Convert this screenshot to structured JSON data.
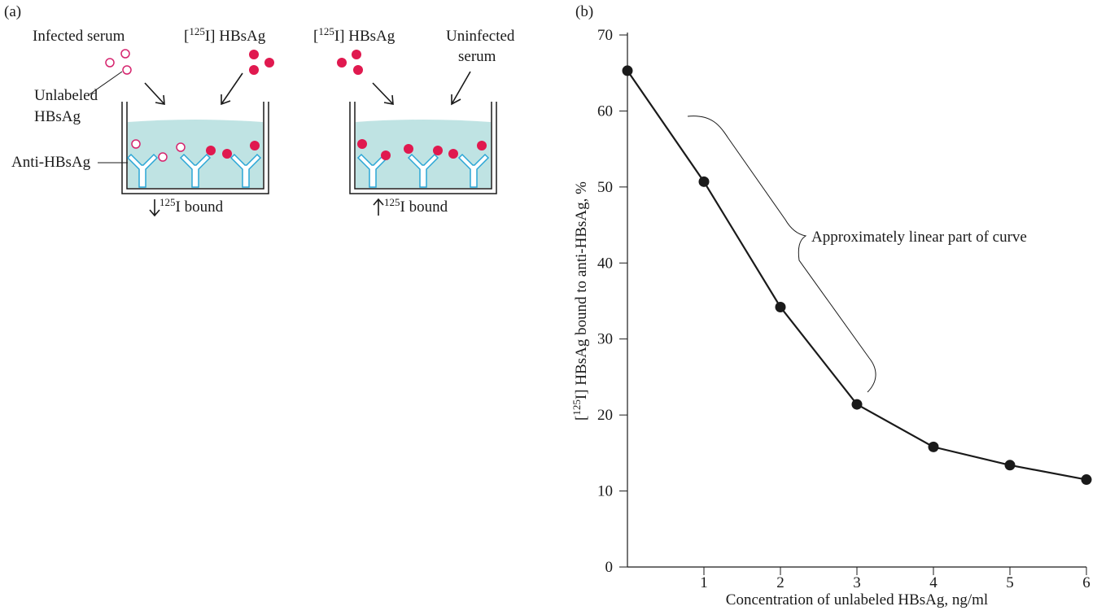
{
  "diagram": {
    "panel_label": "(a)",
    "infected_serum": "Infected serum",
    "labeled_left": [
      "[",
      "125",
      "I] HBsAg"
    ],
    "labeled_right": [
      "[",
      "125",
      "I] HBsAg"
    ],
    "uninfected_serum": [
      "Uninfected",
      "serum"
    ],
    "unlabeled": [
      "Unlabeled",
      "HBsAg"
    ],
    "antibody": "Anti-HBsAg",
    "bound_left": [
      "125",
      "I bound"
    ],
    "bound_right": [
      "125",
      "I bound"
    ]
  },
  "chart_data": {
    "type": "line",
    "panel_label": "(b)",
    "x_label": "Concentration of unlabeled HBsAg, ng/ml",
    "y_label": [
      "[",
      "125",
      "I] HBsAg bound to anti-HBsAg, %"
    ],
    "annotation": "Approximately linear part of curve",
    "x": [
      0,
      1,
      2,
      3,
      4,
      5,
      6
    ],
    "values": [
      65.3,
      50.7,
      34.2,
      21.4,
      15.8,
      13.4,
      11.5
    ],
    "color": "#1a1a1a",
    "xlim": [
      0,
      6
    ],
    "xticks": [
      1,
      2,
      3,
      4,
      5,
      6
    ],
    "ylim": [
      0,
      70
    ],
    "yticks": [
      0,
      10,
      20,
      30,
      40,
      50,
      60,
      70
    ],
    "grid": false
  }
}
